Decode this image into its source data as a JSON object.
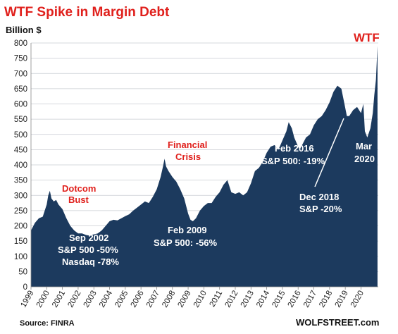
{
  "chart_data": {
    "type": "area",
    "title": "WTF Spike in Margin Debt",
    "ylabel": "Billion $",
    "ylim": [
      0,
      800
    ],
    "yticks": [
      0,
      50,
      100,
      150,
      200,
      250,
      300,
      350,
      400,
      450,
      500,
      550,
      600,
      650,
      700,
      750,
      800
    ],
    "xlim": [
      1999,
      2021.1
    ],
    "xticks": [
      "1999",
      "2000",
      "2001",
      "2002",
      "2003",
      "2004",
      "2005",
      "2006",
      "2007",
      "2008",
      "2009",
      "2010",
      "2011",
      "2012",
      "2013",
      "2014",
      "2015",
      "2016",
      "2017",
      "2018",
      "2019",
      "2020"
    ],
    "grid": true,
    "color": "#1c3a5e",
    "series": [
      {
        "x": [
          1999.0,
          1999.25,
          1999.5,
          1999.75,
          2000.0,
          2000.1,
          2000.2,
          2000.3,
          2000.45,
          2000.6,
          2000.75,
          2001.0,
          2001.25,
          2001.5,
          2001.75,
          2002.0,
          2002.25,
          2002.5,
          2002.7,
          2003.0,
          2003.25,
          2003.5,
          2003.75,
          2004.0,
          2004.25,
          2004.5,
          2004.75,
          2005.0,
          2005.25,
          2005.5,
          2005.75,
          2006.0,
          2006.25,
          2006.5,
          2006.75,
          2007.0,
          2007.25,
          2007.4,
          2007.5,
          2007.6,
          2007.75,
          2008.0,
          2008.25,
          2008.5,
          2008.75,
          2009.0,
          2009.15,
          2009.3,
          2009.5,
          2009.75,
          2010.0,
          2010.25,
          2010.5,
          2010.75,
          2011.0,
          2011.25,
          2011.5,
          2011.75,
          2012.0,
          2012.25,
          2012.5,
          2012.75,
          2013.0,
          2013.25,
          2013.5,
          2013.75,
          2014.0,
          2014.25,
          2014.5,
          2014.75,
          2015.0,
          2015.25,
          2015.4,
          2015.6,
          2015.75,
          2016.0,
          2016.1,
          2016.3,
          2016.5,
          2016.75,
          2017.0,
          2017.25,
          2017.5,
          2017.75,
          2018.0,
          2018.25,
          2018.5,
          2018.75,
          2018.95,
          2019.1,
          2019.25,
          2019.5,
          2019.75,
          2020.0,
          2020.15,
          2020.25,
          2020.4,
          2020.6,
          2020.75,
          2020.85,
          2020.95,
          2021.05
        ],
        "y": [
          185,
          210,
          225,
          230,
          270,
          300,
          315,
          290,
          280,
          285,
          270,
          255,
          225,
          200,
          185,
          175,
          175,
          170,
          168,
          172,
          175,
          185,
          200,
          215,
          220,
          218,
          225,
          232,
          238,
          250,
          260,
          270,
          280,
          275,
          295,
          320,
          360,
          395,
          420,
          395,
          380,
          360,
          345,
          320,
          290,
          240,
          220,
          215,
          225,
          250,
          265,
          275,
          275,
          295,
          310,
          335,
          350,
          310,
          305,
          310,
          300,
          310,
          340,
          380,
          390,
          410,
          440,
          460,
          465,
          450,
          480,
          510,
          540,
          520,
          490,
          460,
          450,
          470,
          490,
          500,
          530,
          550,
          560,
          580,
          605,
          640,
          660,
          650,
          600,
          560,
          560,
          580,
          590,
          570,
          600,
          510,
          490,
          520,
          570,
          630,
          680,
          790
        ]
      }
    ],
    "annotations": [
      {
        "lines": [
          "Dotcom",
          "Bust"
        ]
      },
      {
        "lines": [
          "Sep 2002",
          "S&P 500 -50%",
          "Nasdaq -78%"
        ]
      },
      {
        "lines": [
          "Financial",
          "Crisis"
        ]
      },
      {
        "lines": [
          "Feb 2009",
          "S&P 500: -56%"
        ]
      },
      {
        "lines": [
          "Feb 2016",
          "S&P 500: -19%"
        ]
      },
      {
        "lines": [
          "Dec 2018",
          "S&P -20%"
        ]
      },
      {
        "lines": [
          "Mar",
          "2020"
        ]
      },
      {
        "lines": [
          "WTF"
        ]
      }
    ],
    "source": "Source: FINRA",
    "brand": "WOLFSTREET.com"
  }
}
